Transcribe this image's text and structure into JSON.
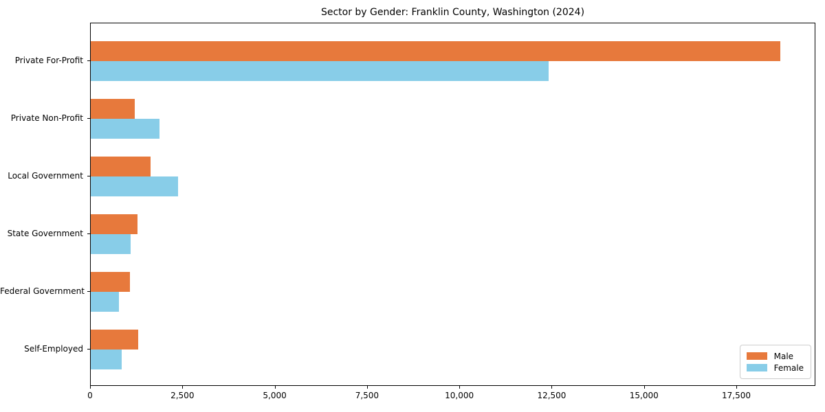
{
  "chart_data": {
    "type": "bar",
    "orientation": "horizontal",
    "title": "Sector by Gender: Franklin County, Washington (2024)",
    "categories": [
      "Private For-Profit",
      "Private Non-Profit",
      "Local Government",
      "State Government",
      "Federal Government",
      "Self-Employed"
    ],
    "series": [
      {
        "name": "Male",
        "color": "#e7793c",
        "values": [
          18710,
          1190,
          1620,
          1270,
          1060,
          1280
        ]
      },
      {
        "name": "Female",
        "color": "#88cde8",
        "values": [
          12430,
          1860,
          2360,
          1080,
          760,
          840
        ]
      }
    ],
    "xlabel": "",
    "ylabel": "",
    "xlim": [
      0,
      19640
    ],
    "x_ticks": [
      "0",
      "2,500",
      "5,000",
      "7,500",
      "10,000",
      "12,500",
      "15,000",
      "17,500"
    ],
    "x_tick_values": [
      0,
      2500,
      5000,
      7500,
      10000,
      12500,
      15000,
      17500
    ],
    "grid": false,
    "legend": {
      "position": "lower right",
      "entries": [
        "Male",
        "Female"
      ]
    }
  },
  "colors": {
    "background": "#ffffff",
    "spine": "#000000",
    "text": "#000000",
    "legend_border": "#cccccc",
    "male": "#e7793c",
    "female": "#88cde8"
  }
}
